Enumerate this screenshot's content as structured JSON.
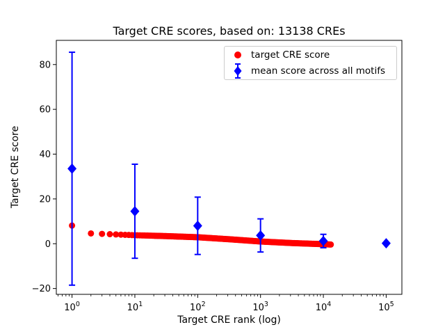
{
  "chart_data": {
    "type": "scatter",
    "title": "Target CRE scores, based on: 13138 CREs",
    "xlabel": "Target CRE rank (log)",
    "ylabel": "Target CRE score",
    "x_scale": "log",
    "xlim_log10": [
      -0.25,
      5.25
    ],
    "ylim": [
      -22.6,
      90.8
    ],
    "x_tick_base": "10",
    "x_tick_exponents": [
      0,
      1,
      2,
      3,
      4,
      5
    ],
    "y_ticks": [
      -20,
      0,
      20,
      40,
      60,
      80
    ],
    "grid": false,
    "legend_position": "upper right",
    "series": [
      {
        "name": "target CRE score",
        "marker": "circle",
        "color": "#ff0000",
        "total_points": 13138,
        "note": "dense declining curve of 13138 ranked scores; profile sampled as [log10(rank), score]",
        "profile_log10_rank_score": [
          [
            0,
            8.1
          ],
          [
            0.301,
            4.6
          ],
          [
            0.477,
            4.4
          ],
          [
            0.699,
            4.15
          ],
          [
            1,
            3.8
          ],
          [
            1.5,
            3.4
          ],
          [
            2,
            2.9
          ],
          [
            2.5,
            2.0
          ],
          [
            3,
            1.0
          ],
          [
            3.5,
            0.3
          ],
          [
            4,
            -0.2
          ],
          [
            4.1185,
            -0.35
          ]
        ]
      },
      {
        "name": "mean score across all motifs",
        "marker": "diamond",
        "color": "#0000ff",
        "points": [
          {
            "rank": 1,
            "mean": 33.5,
            "err": 52.0
          },
          {
            "rank": 10,
            "mean": 14.5,
            "err": 21.0
          },
          {
            "rank": 100,
            "mean": 8.0,
            "err": 12.8
          },
          {
            "rank": 1000,
            "mean": 3.7,
            "err": 7.4
          },
          {
            "rank": 10000,
            "mean": 1.2,
            "err": 3.0
          },
          {
            "rank": 100000,
            "mean": 0.2,
            "err": 0
          }
        ]
      }
    ]
  }
}
